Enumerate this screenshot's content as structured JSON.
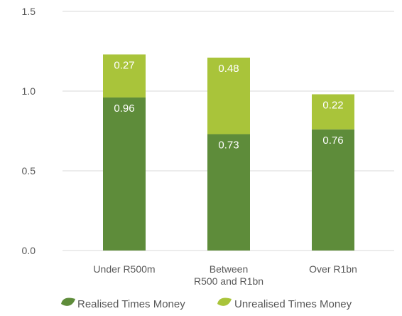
{
  "chart_data": {
    "type": "bar",
    "stacked": true,
    "title": "",
    "xlabel": "",
    "ylabel": "",
    "ylim": [
      0,
      1.5
    ],
    "yticks": [
      "0.0",
      "0.5",
      "1.0",
      "1.5"
    ],
    "categories": [
      "Under R500m",
      "Between R500 and R1bn",
      "Over R1bn"
    ],
    "category_lines": [
      [
        "Under R500m"
      ],
      [
        "Between",
        "R500 and R1bn"
      ],
      [
        "Over R1bn"
      ]
    ],
    "series": [
      {
        "name": "Realised Times Money",
        "values": [
          0.96,
          0.73,
          0.76
        ],
        "labels": [
          "0.96",
          "0.73",
          "0.76"
        ],
        "color": "#5e8c3a"
      },
      {
        "name": "Unrealised Times Money",
        "values": [
          0.27,
          0.48,
          0.22
        ],
        "labels": [
          "0.27",
          "0.48",
          "0.22"
        ],
        "color": "#a9c43a"
      }
    ],
    "grid": true,
    "legend_position": "bottom"
  }
}
